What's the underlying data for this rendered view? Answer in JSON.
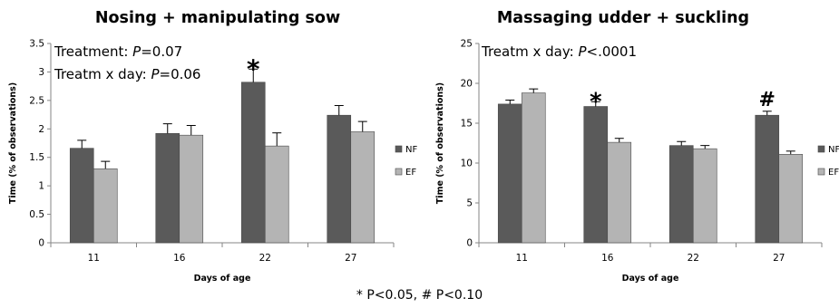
{
  "chart_data": [
    {
      "type": "bar",
      "title": "Nosing + manipulating sow",
      "xlabel": "Days of age",
      "ylabel": "Time (% of observations)",
      "categories": [
        "11",
        "16",
        "22",
        "27"
      ],
      "ylim": [
        0,
        3.5
      ],
      "yticks": [
        "0",
        "0.5",
        "1",
        "1.5",
        "2",
        "2.5",
        "3",
        "3.5"
      ],
      "series": [
        {
          "name": "NF",
          "color": "#5a5a5a",
          "values": [
            1.66,
            1.92,
            2.82,
            2.24
          ],
          "errors": [
            0.14,
            0.17,
            0.23,
            0.17
          ]
        },
        {
          "name": "EF",
          "color": "#b4b4b4",
          "values": [
            1.3,
            1.89,
            1.7,
            1.95
          ],
          "errors": [
            0.13,
            0.17,
            0.23,
            0.18
          ]
        }
      ],
      "annotations": [
        {
          "text": "Treatment: ",
          "italic": "P",
          "rest": "=0.07"
        },
        {
          "text": "Treatm x day: ",
          "italic": "P",
          "rest": "=0.06"
        }
      ],
      "significance": [
        {
          "category": "22",
          "symbol": "*"
        }
      ],
      "legend": {
        "position": "right"
      },
      "grid": false
    },
    {
      "type": "bar",
      "title": "Massaging udder + suckling",
      "xlabel": "Days of age",
      "ylabel": "Time (% of observations)",
      "categories": [
        "11",
        "16",
        "22",
        "27"
      ],
      "ylim": [
        0,
        25
      ],
      "yticks": [
        "0",
        "5",
        "10",
        "15",
        "20",
        "25"
      ],
      "series": [
        {
          "name": "NF",
          "color": "#5a5a5a",
          "values": [
            17.4,
            17.1,
            12.2,
            16.0
          ],
          "errors": [
            0.5,
            0.6,
            0.5,
            0.5
          ]
        },
        {
          "name": "EF",
          "color": "#b4b4b4",
          "values": [
            18.8,
            12.6,
            11.8,
            11.1
          ],
          "errors": [
            0.5,
            0.5,
            0.4,
            0.4
          ]
        }
      ],
      "annotations": [
        {
          "text": "Treatm x day: ",
          "italic": "P",
          "rest": "<.0001"
        }
      ],
      "significance": [
        {
          "category": "16",
          "symbol": "*"
        },
        {
          "category": "27",
          "symbol": "#"
        }
      ],
      "legend": {
        "position": "right"
      },
      "grid": false
    }
  ],
  "footnote": "* P<0.05, # P<0.10"
}
